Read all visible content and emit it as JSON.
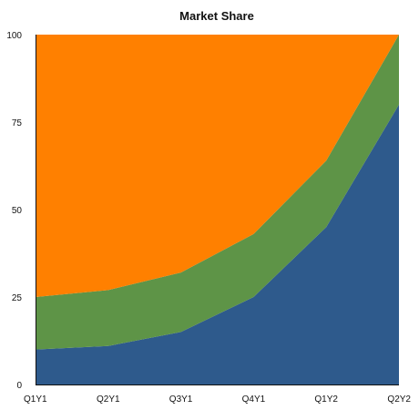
{
  "chart_data": {
    "type": "area",
    "stacked": true,
    "title": "Market Share",
    "xlabel": "",
    "ylabel": "",
    "categories": [
      "Q1Y1",
      "Q2Y1",
      "Q3Y1",
      "Q4Y1",
      "Q1Y2",
      "Q2Y2"
    ],
    "ylim": [
      0,
      100
    ],
    "yticks": [
      "0",
      "25",
      "50",
      "75",
      "100"
    ],
    "grid": false,
    "legend": "none",
    "series": [
      {
        "color": "#2e5a8c",
        "values": [
          10,
          11,
          15,
          25,
          45,
          80
        ]
      },
      {
        "color": "#5e9447",
        "values": [
          15,
          16,
          17,
          18,
          19,
          20
        ]
      },
      {
        "color": "#ff8000",
        "values": [
          75,
          73,
          68,
          57,
          36,
          0
        ]
      }
    ]
  }
}
